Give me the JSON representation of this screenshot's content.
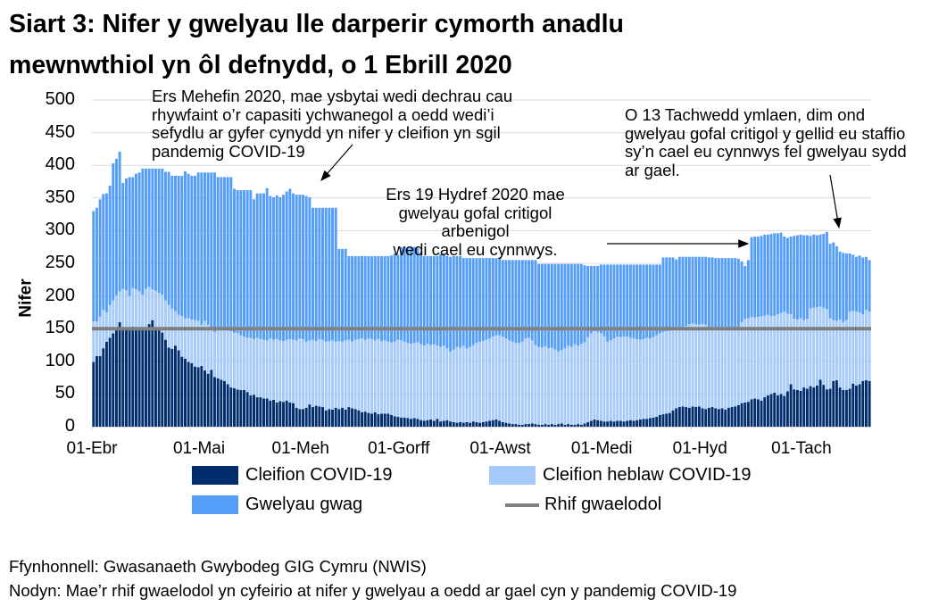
{
  "title_lines": [
    "Siart 3: Nifer y gwelyau lle darperir cymorth anadlu",
    "mewnwthiol yn ôl defnydd, o 1 Ebrill 2020"
  ],
  "annotations": {
    "june": [
      "Ers Mehefin 2020, mae ysbytai wedi dechrau cau",
      "rhywfaint o’r capasiti ychwanegol a oedd wedi’i",
      "sefydlu ar gyfer cynydd yn nifer y cleifion yn sgil",
      "pandemig COVID-19"
    ],
    "october": [
      "Ers 19 Hydref 2020 mae",
      "gwelyau gofal critigol arbenigol",
      "wedi cael eu cynnwys."
    ],
    "november": [
      "O 13 Tachwedd ymlaen, dim ond",
      "gwelyau gofal critigol y gellid eu staffio",
      "sy’n cael eu cynnwys fel gwelyau sydd",
      "ar gael."
    ]
  },
  "footer": {
    "source": "Ffynhonnell: Gwasanaeth Gwybodeg GIG Cymru (NWIS)",
    "note": "Nodyn: Mae’r rhif gwaelodol yn cyfeirio at nifer y gwelyau a oedd ar gael cyn y pandemig COVID-19"
  },
  "chart_data": {
    "type": "bar",
    "stacked": true,
    "ylabel": "Nifer",
    "ylim": [
      0,
      500
    ],
    "yticks": [
      0,
      50,
      100,
      150,
      200,
      250,
      300,
      350,
      400,
      450,
      500
    ],
    "grid": true,
    "legend_position": "bottom",
    "x_range": [
      "2020-04-01",
      "2020-11-24"
    ],
    "xtick_labels": [
      "01-Ebr",
      "01-Mai",
      "01-Meh",
      "01-Gorff",
      "01-Awst",
      "01-Medi",
      "01-Hyd",
      "01-Tach"
    ],
    "baseline": {
      "name": "Rhif gwaelodol",
      "value": 150,
      "color": "#808080"
    },
    "series": [
      {
        "name": "Cleifion COVID-19",
        "color": "#002D6C",
        "values": [
          99,
          108,
          108,
          120,
          130,
          136,
          143,
          150,
          160,
          149,
          150,
          152,
          153,
          152,
          150,
          151,
          152,
          157,
          163,
          150,
          150,
          144,
          133,
          121,
          119,
          124,
          117,
          107,
          104,
          99,
          97,
          92,
          91,
          93,
          86,
          81,
          87,
          76,
          74,
          72,
          70,
          65,
          60,
          59,
          57,
          56,
          56,
          53,
          48,
          49,
          45,
          45,
          43,
          43,
          40,
          41,
          37,
          39,
          38,
          40,
          37,
          36,
          29,
          27,
          27,
          29,
          34,
          30,
          32,
          31,
          30,
          25,
          27,
          26,
          29,
          27,
          29,
          26,
          30,
          28,
          27,
          25,
          22,
          23,
          21,
          20,
          22,
          19,
          20,
          20,
          20,
          18,
          16,
          15,
          14,
          14,
          13,
          12,
          13,
          12,
          10,
          9,
          10,
          11,
          9,
          12,
          8,
          9,
          10,
          8,
          7,
          6,
          7,
          6,
          7,
          6,
          8,
          7,
          6,
          7,
          8,
          9,
          10,
          11,
          9,
          7,
          6,
          5,
          4,
          4,
          3,
          3,
          4,
          4,
          5,
          4,
          3,
          3,
          4,
          3,
          4,
          3,
          4,
          5,
          3,
          4,
          3,
          3,
          4,
          3,
          5,
          7,
          9,
          11,
          10,
          9,
          8,
          8,
          9,
          8,
          9,
          9,
          8,
          9,
          10,
          9,
          10,
          11,
          12,
          12,
          13,
          14,
          15,
          18,
          19,
          20,
          21,
          25,
          28,
          30,
          31,
          30,
          29,
          31,
          30,
          31,
          28,
          27,
          29,
          30,
          28,
          27,
          28,
          26,
          29,
          30,
          31,
          33,
          36,
          37,
          38,
          42,
          43,
          42,
          40,
          45,
          48,
          50,
          52,
          48,
          50,
          47,
          54,
          65,
          57,
          56,
          55,
          60,
          58,
          62,
          60,
          63,
          72,
          64,
          57,
          58,
          70,
          71,
          60,
          56,
          56,
          58,
          66,
          63,
          65,
          70,
          71,
          70
        ]
      },
      {
        "name": "Cleifion heblaw COVID-19",
        "color": "#A6CBFA",
        "values": [
          62,
          53,
          60,
          59,
          45,
          50,
          50,
          51,
          47,
          62,
          59,
          48,
          59,
          58,
          57,
          51,
          59,
          57,
          47,
          58,
          55,
          58,
          60,
          65,
          62,
          53,
          54,
          62,
          62,
          67,
          67,
          71,
          71,
          63,
          76,
          75,
          63,
          69,
          76,
          76,
          80,
          83,
          86,
          85,
          86,
          84,
          82,
          83,
          88,
          85,
          91,
          89,
          90,
          89,
          95,
          92,
          97,
          93,
          93,
          93,
          97,
          97,
          103,
          108,
          107,
          101,
          98,
          103,
          99,
          103,
          103,
          105,
          104,
          106,
          101,
          104,
          101,
          106,
          103,
          102,
          106,
          109,
          113,
          110,
          114,
          114,
          110,
          115,
          111,
          112,
          110,
          111,
          114,
          118,
          118,
          116,
          115,
          115,
          115,
          117,
          116,
          115,
          117,
          114,
          117,
          112,
          114,
          115,
          110,
          107,
          111,
          116,
          114,
          118,
          113,
          116,
          117,
          121,
          124,
          124,
          125,
          126,
          128,
          129,
          131,
          131,
          129,
          127,
          126,
          124,
          125,
          127,
          131,
          132,
          127,
          121,
          119,
          118,
          119,
          117,
          117,
          115,
          111,
          112,
          117,
          120,
          119,
          123,
          120,
          124,
          124,
          130,
          134,
          135,
          135,
          134,
          130,
          122,
          123,
          127,
          129,
          128,
          130,
          129,
          126,
          126,
          124,
          122,
          122,
          124,
          122,
          123,
          125,
          125,
          126,
          126,
          126,
          124,
          122,
          120,
          121,
          124,
          128,
          127,
          127,
          125,
          129,
          129,
          123,
          123,
          124,
          124,
          124,
          127,
          123,
          121,
          119,
          119,
          124,
          128,
          128,
          126,
          124,
          126,
          129,
          125,
          123,
          119,
          118,
          124,
          124,
          129,
          119,
          107,
          108,
          108,
          111,
          103,
          107,
          119,
          122,
          120,
          112,
          118,
          123,
          108,
          93,
          91,
          104,
          104,
          107,
          118,
          111,
          113,
          110,
          102,
          108,
          106
        ]
      },
      {
        "name": "Gwelyau gwag",
        "color": "#559EF8",
        "values": [
          169,
          174,
          180,
          177,
          182,
          183,
          210,
          209,
          214,
          162,
          171,
          182,
          170,
          177,
          182,
          193,
          184,
          181,
          185,
          187,
          190,
          193,
          197,
          204,
          203,
          207,
          213,
          215,
          225,
          221,
          220,
          221,
          227,
          233,
          227,
          233,
          239,
          244,
          232,
          234,
          232,
          234,
          236,
          220,
          219,
          222,
          224,
          226,
          226,
          214,
          221,
          223,
          224,
          233,
          218,
          218,
          220,
          219,
          224,
          227,
          230,
          224,
          223,
          220,
          221,
          223,
          219,
          202,
          204,
          201,
          202,
          205,
          204,
          203,
          205,
          141,
          142,
          140,
          128,
          131,
          128,
          127,
          126,
          128,
          126,
          127,
          129,
          127,
          130,
          129,
          131,
          133,
          135,
          130,
          143,
          145,
          147,
          148,
          147,
          144,
          139,
          137,
          134,
          136,
          135,
          137,
          142,
          141,
          141,
          145,
          143,
          139,
          140,
          134,
          138,
          136,
          133,
          130,
          128,
          127,
          125,
          123,
          120,
          118,
          118,
          117,
          120,
          123,
          125,
          127,
          127,
          125,
          120,
          119,
          123,
          130,
          127,
          128,
          126,
          129,
          128,
          131,
          134,
          132,
          129,
          125,
          127,
          123,
          125,
          122,
          118,
          109,
          103,
          100,
          101,
          105,
          110,
          118,
          116,
          113,
          110,
          111,
          110,
          110,
          112,
          113,
          114,
          115,
          114,
          112,
          113,
          111,
          108,
          105,
          114,
          113,
          112,
          110,
          106,
          110,
          108,
          106,
          103,
          102,
          103,
          104,
          103,
          104,
          107,
          106,
          106,
          107,
          106,
          105,
          106,
          107,
          108,
          105,
          93,
          81,
          89,
          122,
          124,
          123,
          123,
          124,
          123,
          126,
          126,
          124,
          123,
          115,
          116,
          119,
          127,
          129,
          128,
          130,
          128,
          111,
          112,
          110,
          110,
          113,
          118,
          114,
          119,
          114,
          104,
          106,
          102,
          89,
          86,
          84,
          87,
          87,
          81,
          79
        ]
      }
    ]
  }
}
